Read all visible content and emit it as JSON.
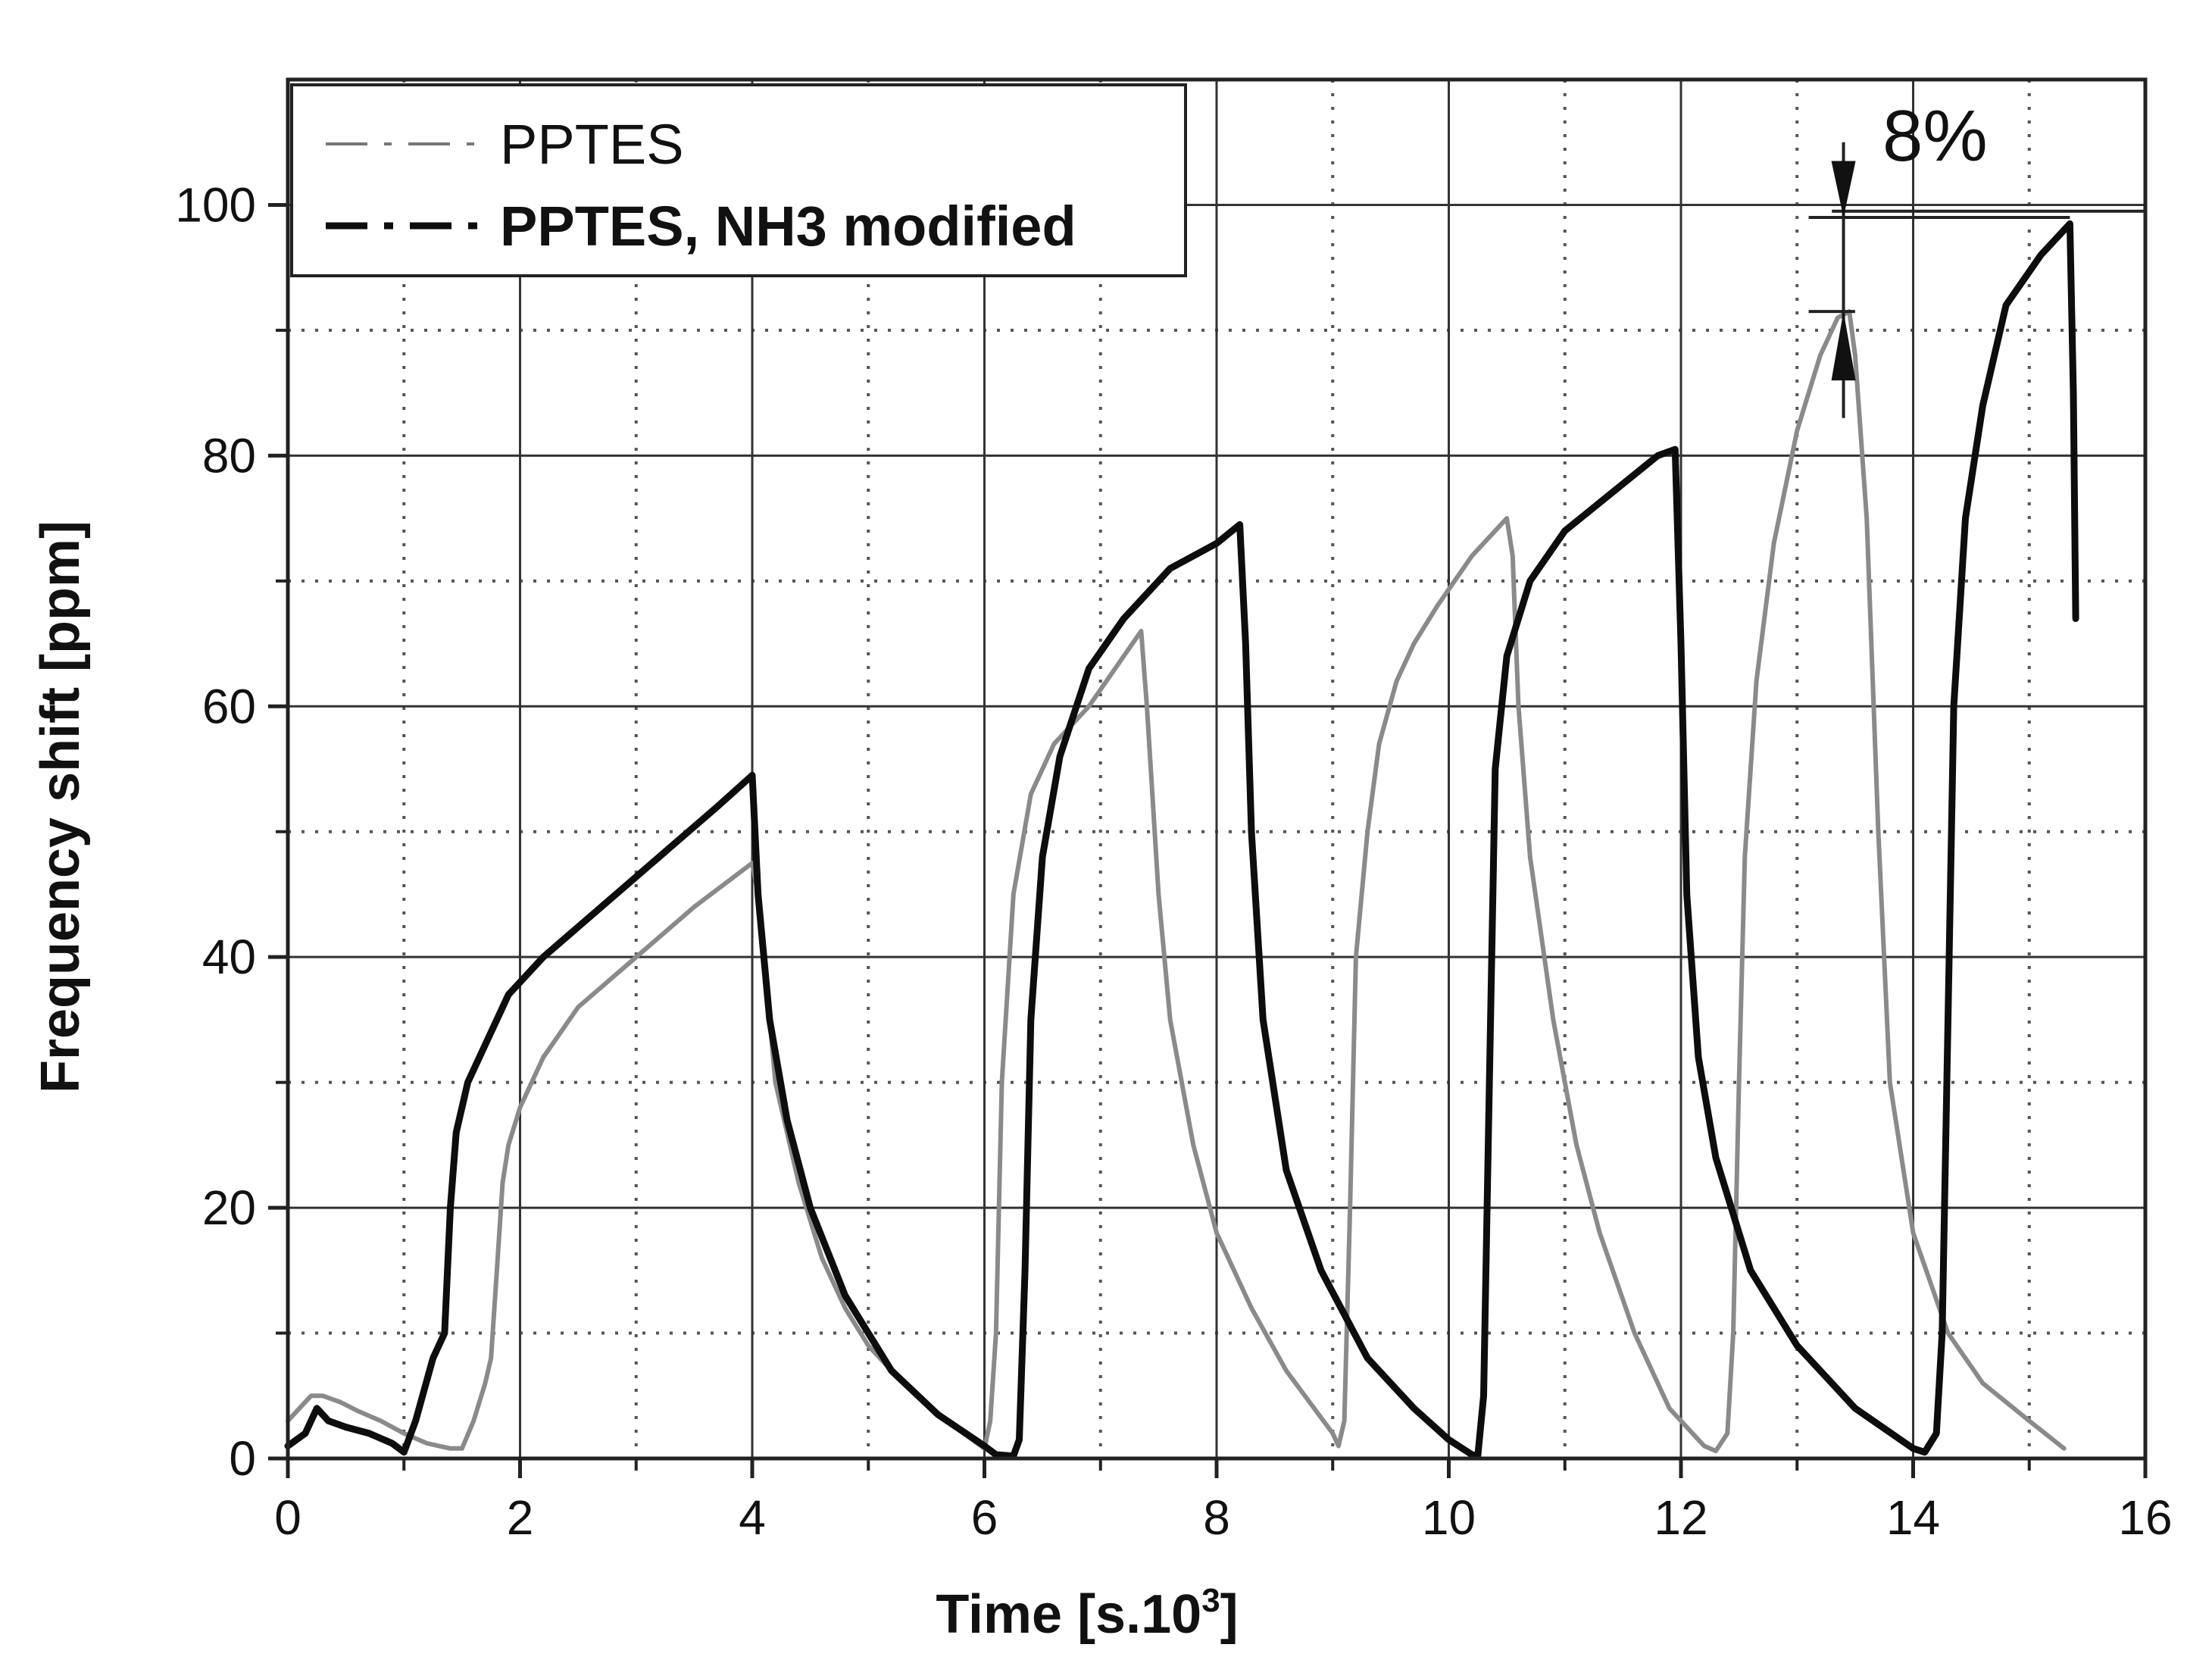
{
  "chart_data": {
    "type": "line",
    "title": "",
    "xlabel": "Time [s.10",
    "xlabel_sup": "3",
    "xlabel_suffix": "]",
    "ylabel": "Frequency shift [ppm]",
    "xlim": [
      0,
      16
    ],
    "ylim": [
      0,
      110
    ],
    "x_ticks": [
      0,
      2,
      4,
      6,
      8,
      10,
      12,
      14,
      16
    ],
    "x_tick_labels": [
      "0",
      "2",
      "4",
      "6",
      "8",
      "10",
      "12",
      "14",
      "16"
    ],
    "y_ticks": [
      0,
      20,
      40,
      60,
      80,
      100
    ],
    "y_tick_labels": [
      "0",
      "20",
      "40",
      "60",
      "80",
      "100"
    ],
    "major_grid_x": [
      2,
      4,
      6,
      8,
      10,
      12,
      14
    ],
    "major_grid_y": [
      20,
      40,
      60,
      80,
      100
    ],
    "minor_grid_x": [
      1,
      3,
      5,
      7,
      9,
      11,
      13,
      15
    ],
    "minor_grid_y": [
      10,
      30,
      50,
      70,
      90
    ],
    "grid": true,
    "legend_position": "top-left",
    "annotation": {
      "text": "8%",
      "x": 13.4,
      "y_low": 91.5,
      "y_high": 99,
      "ref_line_y": 99.5
    },
    "series": [
      {
        "name": "PPTES",
        "style": "dash-dot",
        "color": "#8a8a8a",
        "points": [
          [
            0,
            3
          ],
          [
            0.1,
            4
          ],
          [
            0.2,
            5
          ],
          [
            0.3,
            5
          ],
          [
            0.45,
            4.5
          ],
          [
            0.6,
            3.8
          ],
          [
            0.8,
            3
          ],
          [
            1.0,
            2
          ],
          [
            1.2,
            1.2
          ],
          [
            1.4,
            0.8
          ],
          [
            1.5,
            0.8
          ],
          [
            1.6,
            3
          ],
          [
            1.7,
            6
          ],
          [
            1.75,
            8
          ],
          [
            1.8,
            15
          ],
          [
            1.85,
            22
          ],
          [
            1.9,
            25
          ],
          [
            2.0,
            28
          ],
          [
            2.2,
            32
          ],
          [
            2.5,
            36
          ],
          [
            3.0,
            40
          ],
          [
            3.5,
            44
          ],
          [
            4.0,
            47.5
          ],
          [
            4.05,
            45
          ],
          [
            4.2,
            30
          ],
          [
            4.4,
            22
          ],
          [
            4.6,
            16
          ],
          [
            4.8,
            12
          ],
          [
            5.0,
            9
          ],
          [
            5.3,
            6
          ],
          [
            5.6,
            3.5
          ],
          [
            6.0,
            0.8
          ],
          [
            6.05,
            3
          ],
          [
            6.1,
            10
          ],
          [
            6.15,
            30
          ],
          [
            6.25,
            45
          ],
          [
            6.4,
            53
          ],
          [
            6.6,
            57
          ],
          [
            6.9,
            60
          ],
          [
            7.2,
            64
          ],
          [
            7.35,
            66
          ],
          [
            7.4,
            60
          ],
          [
            7.5,
            45
          ],
          [
            7.6,
            35
          ],
          [
            7.8,
            25
          ],
          [
            8.0,
            18
          ],
          [
            8.3,
            12
          ],
          [
            8.6,
            7
          ],
          [
            9.0,
            2
          ],
          [
            9.05,
            1
          ],
          [
            9.1,
            3
          ],
          [
            9.15,
            20
          ],
          [
            9.2,
            40
          ],
          [
            9.3,
            50
          ],
          [
            9.4,
            57
          ],
          [
            9.55,
            62
          ],
          [
            9.7,
            65
          ],
          [
            9.9,
            68
          ],
          [
            10.2,
            72
          ],
          [
            10.5,
            75
          ],
          [
            10.55,
            72
          ],
          [
            10.6,
            60
          ],
          [
            10.7,
            48
          ],
          [
            10.9,
            35
          ],
          [
            11.1,
            25
          ],
          [
            11.3,
            18
          ],
          [
            11.6,
            10
          ],
          [
            11.9,
            4
          ],
          [
            12.2,
            1
          ],
          [
            12.3,
            0.6
          ],
          [
            12.4,
            2
          ],
          [
            12.45,
            10
          ],
          [
            12.5,
            30
          ],
          [
            12.55,
            48
          ],
          [
            12.65,
            62
          ],
          [
            12.8,
            73
          ],
          [
            13.0,
            82
          ],
          [
            13.2,
            88
          ],
          [
            13.35,
            91
          ],
          [
            13.45,
            91.5
          ],
          [
            13.5,
            88
          ],
          [
            13.6,
            75
          ],
          [
            13.7,
            50
          ],
          [
            13.8,
            30
          ],
          [
            14.0,
            18
          ],
          [
            14.3,
            10
          ],
          [
            14.6,
            6
          ],
          [
            15.0,
            3
          ],
          [
            15.3,
            0.8
          ]
        ]
      },
      {
        "name": "PPTES, NH3 modified",
        "style": "dash-dot",
        "color": "#0d0d0d",
        "points": [
          [
            0,
            1
          ],
          [
            0.15,
            2
          ],
          [
            0.25,
            4
          ],
          [
            0.35,
            3
          ],
          [
            0.5,
            2.5
          ],
          [
            0.7,
            2
          ],
          [
            0.9,
            1.2
          ],
          [
            1.0,
            0.5
          ],
          [
            1.1,
            3
          ],
          [
            1.25,
            8
          ],
          [
            1.35,
            10
          ],
          [
            1.4,
            20
          ],
          [
            1.45,
            26
          ],
          [
            1.55,
            30
          ],
          [
            1.7,
            33
          ],
          [
            1.9,
            37
          ],
          [
            2.2,
            40
          ],
          [
            2.7,
            44
          ],
          [
            3.2,
            48
          ],
          [
            3.7,
            52
          ],
          [
            4.0,
            54.5
          ],
          [
            4.05,
            45
          ],
          [
            4.15,
            35
          ],
          [
            4.3,
            27
          ],
          [
            4.5,
            20
          ],
          [
            4.8,
            13
          ],
          [
            5.2,
            7
          ],
          [
            5.6,
            3.5
          ],
          [
            6.0,
            1
          ],
          [
            6.1,
            0.3
          ],
          [
            6.25,
            0.2
          ],
          [
            6.3,
            1.5
          ],
          [
            6.35,
            15
          ],
          [
            6.4,
            35
          ],
          [
            6.5,
            48
          ],
          [
            6.65,
            56
          ],
          [
            6.9,
            63
          ],
          [
            7.2,
            67
          ],
          [
            7.6,
            71
          ],
          [
            8.0,
            73
          ],
          [
            8.2,
            74.5
          ],
          [
            8.25,
            65
          ],
          [
            8.3,
            50
          ],
          [
            8.4,
            35
          ],
          [
            8.6,
            23
          ],
          [
            8.9,
            15
          ],
          [
            9.3,
            8
          ],
          [
            9.7,
            4
          ],
          [
            10.0,
            1.5
          ],
          [
            10.2,
            0.3
          ],
          [
            10.25,
            0.2
          ],
          [
            10.3,
            5
          ],
          [
            10.35,
            30
          ],
          [
            10.4,
            55
          ],
          [
            10.5,
            64
          ],
          [
            10.7,
            70
          ],
          [
            11.0,
            74
          ],
          [
            11.4,
            77
          ],
          [
            11.8,
            80
          ],
          [
            11.95,
            80.5
          ],
          [
            12.0,
            65
          ],
          [
            12.05,
            45
          ],
          [
            12.15,
            32
          ],
          [
            12.3,
            24
          ],
          [
            12.6,
            15
          ],
          [
            13.0,
            9
          ],
          [
            13.5,
            4
          ],
          [
            14.0,
            0.8
          ],
          [
            14.1,
            0.5
          ],
          [
            14.2,
            2
          ],
          [
            14.25,
            10
          ],
          [
            14.3,
            35
          ],
          [
            14.35,
            60
          ],
          [
            14.45,
            75
          ],
          [
            14.6,
            84
          ],
          [
            14.8,
            92
          ],
          [
            15.1,
            96
          ],
          [
            15.35,
            98.5
          ],
          [
            15.38,
            85
          ],
          [
            15.4,
            67
          ]
        ]
      }
    ]
  }
}
